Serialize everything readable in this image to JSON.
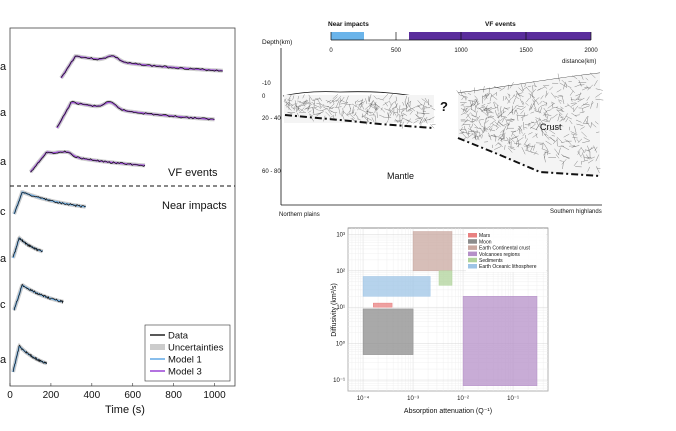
{
  "chart_data": [
    {
      "type": "line",
      "panel": "seismogram-envelopes",
      "xlabel": "Time (s)",
      "x_ticks": [
        0,
        200,
        400,
        600,
        800,
        1000
      ],
      "xlim": [
        0,
        1100
      ],
      "row_labels": [
        "a",
        "a",
        "a",
        "c",
        "a",
        "c",
        "a"
      ],
      "group_labels": [
        "VF events",
        "Near impacts"
      ],
      "legend": [
        "Data",
        "Uncertainties",
        "Model 1",
        "Model 3"
      ],
      "series_colors": {
        "data": "#111111",
        "uncertainty": "#cccccc",
        "model1": "#6aaee8",
        "model3": "#a04fd8"
      },
      "traces": [
        {
          "group": "VF events",
          "start": 250,
          "end": 1040,
          "peak_x": 320,
          "bump_x": 500
        },
        {
          "group": "VF events",
          "start": 230,
          "end": 1000,
          "peak_x": 300,
          "bump_x": 490
        },
        {
          "group": "VF events",
          "start": 100,
          "end": 660,
          "peak_x": 180,
          "bump_x": 270
        },
        {
          "group": "Near impacts",
          "start": 20,
          "end": 370,
          "peak_x": 60
        },
        {
          "group": "Near impacts",
          "start": 15,
          "end": 160,
          "peak_x": 45
        },
        {
          "group": "Near impacts",
          "start": 20,
          "end": 260,
          "peak_x": 60
        },
        {
          "group": "Near impacts",
          "start": 15,
          "end": 180,
          "peak_x": 45
        }
      ]
    },
    {
      "type": "diagram",
      "panel": "crust-cross-section",
      "scale_labels": {
        "near": "Near impacts",
        "vf": "VF events"
      },
      "scale_ticks": [
        0,
        500,
        1000,
        1500,
        2000
      ],
      "scale_unit": "distance(km)",
      "depth_label": "Depth(km)",
      "depth_ticks": [
        "-10",
        "0",
        "20 - 40",
        "60 - 80"
      ],
      "labels": {
        "mantle": "Mantle",
        "crust": "Crust",
        "unknown": "?",
        "left": "Northern plains",
        "right": "Southern highlands"
      },
      "colors": {
        "near": "#6ab4ea",
        "vf": "#5a2d9c"
      }
    },
    {
      "type": "heatmap",
      "panel": "diffusivity-vs-attenuation",
      "xlabel": "Absorption attenuation (Q⁻¹)",
      "ylabel": "Diffusivity (km²/s)",
      "x_scale": "log",
      "y_scale": "log",
      "xlim": [
        5e-05,
        0.5
      ],
      "ylim": [
        0.05,
        1500
      ],
      "x_ticks": [
        "10⁻⁴",
        "10⁻³",
        "10⁻²",
        "10⁻¹"
      ],
      "y_ticks": [
        "10⁻¹",
        "10⁰",
        "10¹",
        "10²",
        "10³"
      ],
      "grid": true,
      "legend_position": "top-right",
      "regions": [
        {
          "name": "Mars",
          "x": [
            0.00016,
            0.00038
          ],
          "y": [
            10,
            13
          ],
          "color": "#e88080"
        },
        {
          "name": "Moon",
          "x": [
            0.0001,
            0.001
          ],
          "y": [
            0.5,
            9
          ],
          "color": "#8c8c8c"
        },
        {
          "name": "Earth Continental crust",
          "x": [
            0.001,
            0.006
          ],
          "y": [
            100,
            1200
          ],
          "color": "#c9a8a0"
        },
        {
          "name": "Volcanoes regions",
          "x": [
            0.01,
            0.3
          ],
          "y": [
            0.07,
            20
          ],
          "color": "#b590c8"
        },
        {
          "name": "Sediments",
          "x": [
            0.0033,
            0.006
          ],
          "y": [
            40,
            100
          ],
          "color": "#b0d39b"
        },
        {
          "name": "Earth Oceanic lithosphere",
          "x": [
            0.0001,
            0.0022
          ],
          "y": [
            20,
            70
          ],
          "color": "#9ec4e6"
        }
      ]
    }
  ]
}
